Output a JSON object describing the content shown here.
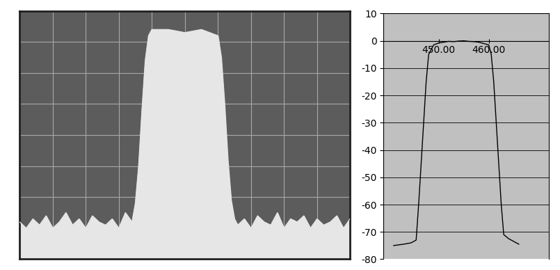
{
  "chart_data": [
    {
      "type": "area",
      "color": "#e6e6e6",
      "grid": true,
      "tick_labels": false,
      "xlim": [
        0,
        10
      ],
      "ylim": [
        0,
        8
      ],
      "xticks": [
        0,
        1,
        2,
        3,
        4,
        5,
        6,
        7,
        8,
        9,
        10
      ],
      "yticks": [
        0,
        1,
        2,
        3,
        4,
        5,
        6,
        7,
        8
      ],
      "x": [
        0,
        0.2,
        0.4,
        0.6,
        0.8,
        1.0,
        1.2,
        1.4,
        1.6,
        1.8,
        2.0,
        2.2,
        2.4,
        2.6,
        2.8,
        3.0,
        3.2,
        3.4,
        3.5,
        3.6,
        3.7,
        3.8,
        3.9,
        4.0,
        4.5,
        5.0,
        5.5,
        6.0,
        6.1,
        6.2,
        6.3,
        6.4,
        6.5,
        6.6,
        6.8,
        7.0,
        7.2,
        7.4,
        7.6,
        7.8,
        8.0,
        8.2,
        8.4,
        8.6,
        8.8,
        9.0,
        9.2,
        9.4,
        9.6,
        9.8,
        10.0
      ],
      "values": [
        1.2,
        1.0,
        1.3,
        1.1,
        1.4,
        1.0,
        1.2,
        1.5,
        1.1,
        1.3,
        1.0,
        1.4,
        1.2,
        1.1,
        1.3,
        1.0,
        1.5,
        1.2,
        1.8,
        3.0,
        4.8,
        6.4,
        7.2,
        7.4,
        7.4,
        7.3,
        7.4,
        7.2,
        6.5,
        5.0,
        3.2,
        1.9,
        1.3,
        1.1,
        1.3,
        1.0,
        1.4,
        1.2,
        1.1,
        1.5,
        1.0,
        1.3,
        1.2,
        1.4,
        1.0,
        1.3,
        1.1,
        1.2,
        1.4,
        1.0,
        1.3
      ]
    },
    {
      "type": "line",
      "color": "#000000",
      "grid": true,
      "xlim": [
        439,
        472
      ],
      "ylim": [
        -80,
        10
      ],
      "xticks": [
        {
          "value": 450,
          "label": "450.00"
        },
        {
          "value": 460,
          "label": "460.00"
        }
      ],
      "yticks": [
        -80,
        -70,
        -60,
        -50,
        -40,
        -30,
        -20,
        -10,
        0,
        10
      ],
      "x": [
        441,
        443,
        444.5,
        445.5,
        446,
        446.5,
        447,
        447.5,
        448,
        449,
        450,
        451,
        452,
        453,
        454,
        455,
        456,
        457,
        458,
        459,
        460,
        460.5,
        461,
        461.5,
        462,
        462.5,
        463,
        464,
        465,
        466
      ],
      "values": [
        -75,
        -74.5,
        -74,
        -73,
        -60,
        -45,
        -30,
        -15,
        -5,
        -1.5,
        -0.8,
        -0.5,
        -0.2,
        -0.3,
        -0.1,
        0,
        -0.2,
        -0.3,
        -0.5,
        -1,
        -1.5,
        -5,
        -15,
        -30,
        -45,
        -60,
        -71,
        -72.5,
        -73.5,
        -74.5
      ]
    }
  ]
}
